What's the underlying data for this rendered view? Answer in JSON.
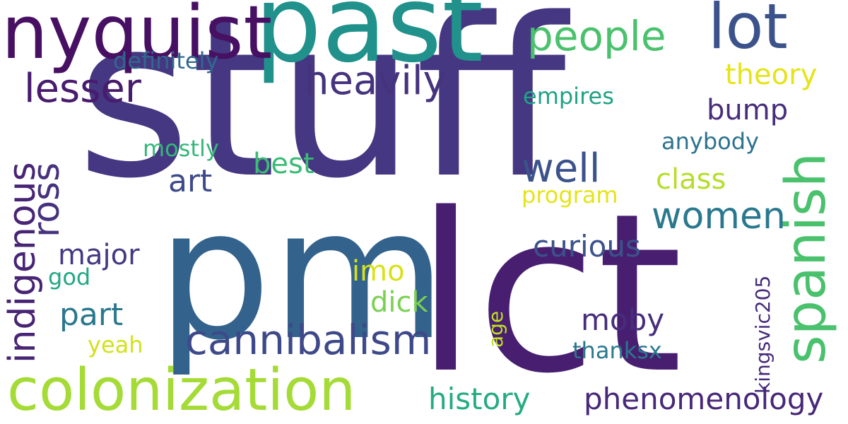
{
  "words": {
    "stuff": {
      "text": "stuff",
      "color": "#453781"
    },
    "lct": {
      "text": "lct",
      "color": "#481f70"
    },
    "pm": {
      "text": "pm",
      "color": "#33638d"
    },
    "past": {
      "text": "past",
      "color": "#21918c"
    },
    "nyquist": {
      "text": "nyquist",
      "color": "#471063"
    },
    "lot": {
      "text": "lot",
      "color": "#3b528b"
    },
    "colonization": {
      "text": "colonization",
      "color": "#a5db36"
    },
    "cannibalism": {
      "text": "cannibalism",
      "color": "#3e4989"
    },
    "spanish": {
      "text": "spanish",
      "color": "#4ac16d"
    },
    "indigenous": {
      "text": "indigenous",
      "color": "#482475"
    },
    "people": {
      "text": "people",
      "color": "#4ac16d"
    },
    "heavily": {
      "text": "heavily",
      "color": "#46337e"
    },
    "lesser": {
      "text": "lesser",
      "color": "#481b6d"
    },
    "women": {
      "text": "women",
      "color": "#2a788e"
    },
    "ross": {
      "text": "ross",
      "color": "#46327e"
    },
    "well": {
      "text": "well",
      "color": "#3b528b"
    },
    "phenomenology": {
      "text": "phenomenology",
      "color": "#482878"
    },
    "history": {
      "text": "history",
      "color": "#25ab82"
    },
    "theory": {
      "text": "theory",
      "color": "#e5e419"
    },
    "definitely": {
      "text": "definitely",
      "color": "#31688e"
    },
    "bump": {
      "text": "bump",
      "color": "#472d7b"
    },
    "empires": {
      "text": "empires",
      "color": "#20a386"
    },
    "mostly": {
      "text": "mostly",
      "color": "#35b779"
    },
    "best": {
      "text": "best",
      "color": "#3bbb75"
    },
    "art": {
      "text": "art",
      "color": "#3e4a89"
    },
    "class": {
      "text": "class",
      "color": "#b5de2b"
    },
    "program": {
      "text": "program",
      "color": "#e5e419"
    },
    "anybody": {
      "text": "anybody",
      "color": "#2c728e"
    },
    "curious": {
      "text": "curious",
      "color": "#3b528b"
    },
    "major": {
      "text": "major",
      "color": "#443a83"
    },
    "imo": {
      "text": "imo",
      "color": "#d8e219"
    },
    "god": {
      "text": "god",
      "color": "#22a884"
    },
    "dick": {
      "text": "dick",
      "color": "#7ad151"
    },
    "part": {
      "text": "part",
      "color": "#2a788e"
    },
    "moby": {
      "text": "moby",
      "color": "#472d7b"
    },
    "kingsvic205": {
      "text": "kingsvic205",
      "color": "#472c7a"
    },
    "age": {
      "text": "age",
      "color": "#c2df23"
    },
    "yeah": {
      "text": "yeah",
      "color": "#d2e21b"
    },
    "thanksx": {
      "text": "thanksx",
      "color": "#2a788e"
    }
  }
}
